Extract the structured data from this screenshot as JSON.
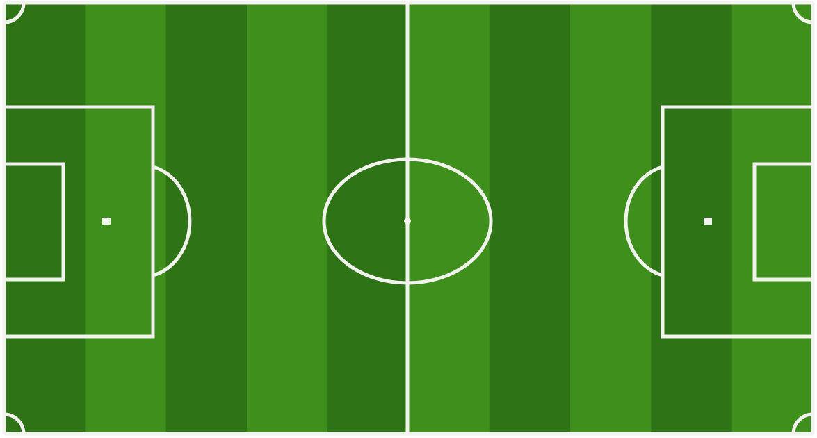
{
  "pitch": {
    "colors": {
      "grass_light": "#3f8f1c",
      "grass_dark": "#2e7417",
      "lines": "#f2f2ee",
      "outside": "#ffffff"
    },
    "stripe_count": 10,
    "markings": [
      "touchline-top",
      "touchline-bottom",
      "goal-line-left",
      "goal-line-right",
      "halfway-line",
      "center-circle",
      "center-spot",
      "penalty-area-left",
      "penalty-area-right",
      "goal-area-left",
      "goal-area-right",
      "penalty-spot-left",
      "penalty-spot-right",
      "penalty-arc-left",
      "penalty-arc-right",
      "corner-arc-top-left",
      "corner-arc-top-right",
      "corner-arc-bottom-left",
      "corner-arc-bottom-right"
    ]
  }
}
